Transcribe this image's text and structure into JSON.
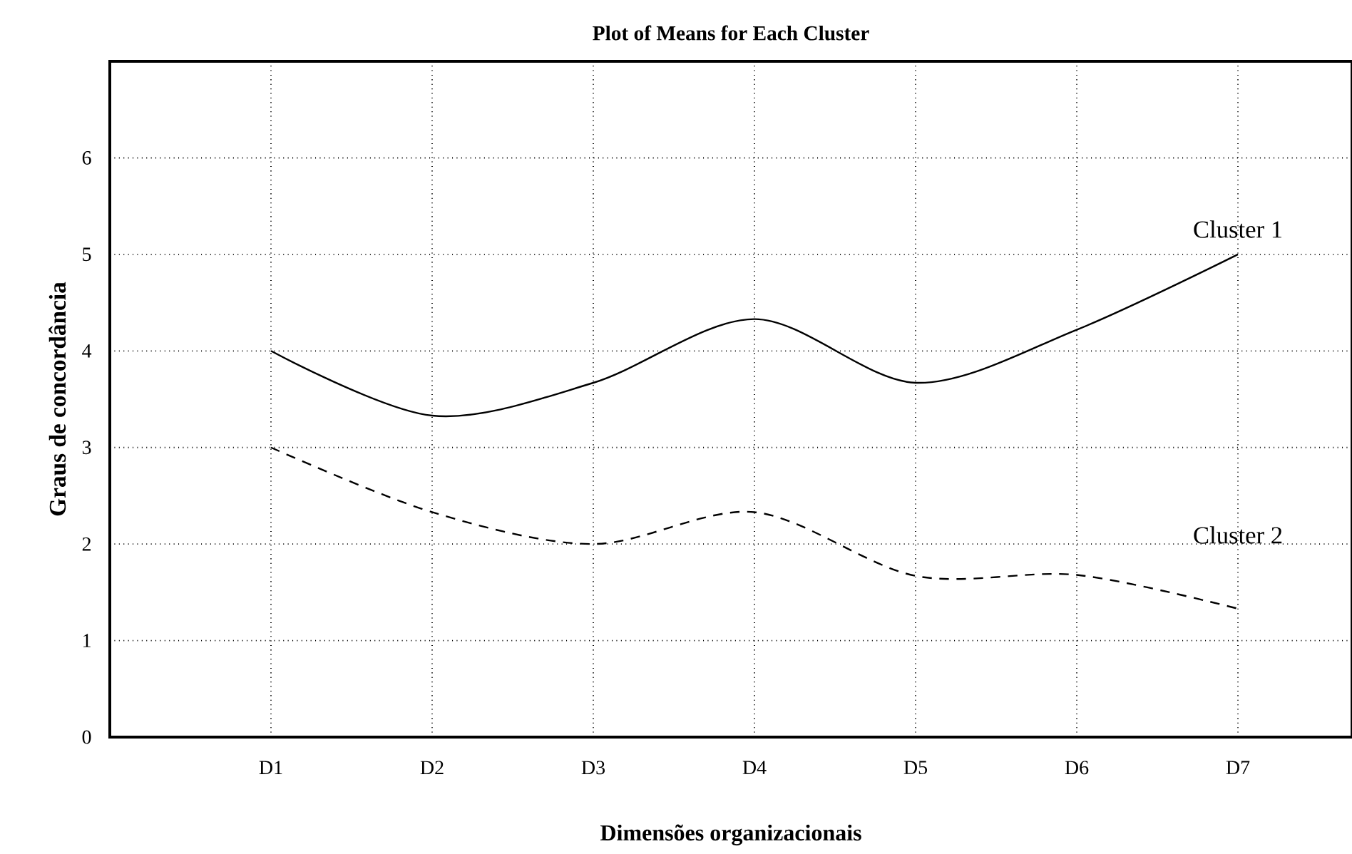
{
  "chart_data": {
    "type": "line",
    "title": "Plot of Means for Each Cluster",
    "xlabel": "Dimensões organizacionais",
    "ylabel": "Graus de concordância",
    "categories": [
      "D1",
      "D2",
      "D3",
      "D4",
      "D5",
      "D6",
      "D7"
    ],
    "series": [
      {
        "name": "Cluster 1",
        "color": "#000000",
        "line_style": "solid",
        "values": [
          4.0,
          3.33,
          3.67,
          4.33,
          3.67,
          4.22,
          5.0
        ]
      },
      {
        "name": "Cluster 2",
        "color": "#000000",
        "line_style": "dashed",
        "values": [
          3.0,
          2.33,
          2.0,
          2.33,
          1.67,
          1.68,
          1.33
        ]
      }
    ],
    "ylim": [
      0,
      7
    ],
    "yticks": [
      0,
      1,
      2,
      3,
      4,
      5,
      6
    ],
    "grid": true,
    "legend": false
  }
}
